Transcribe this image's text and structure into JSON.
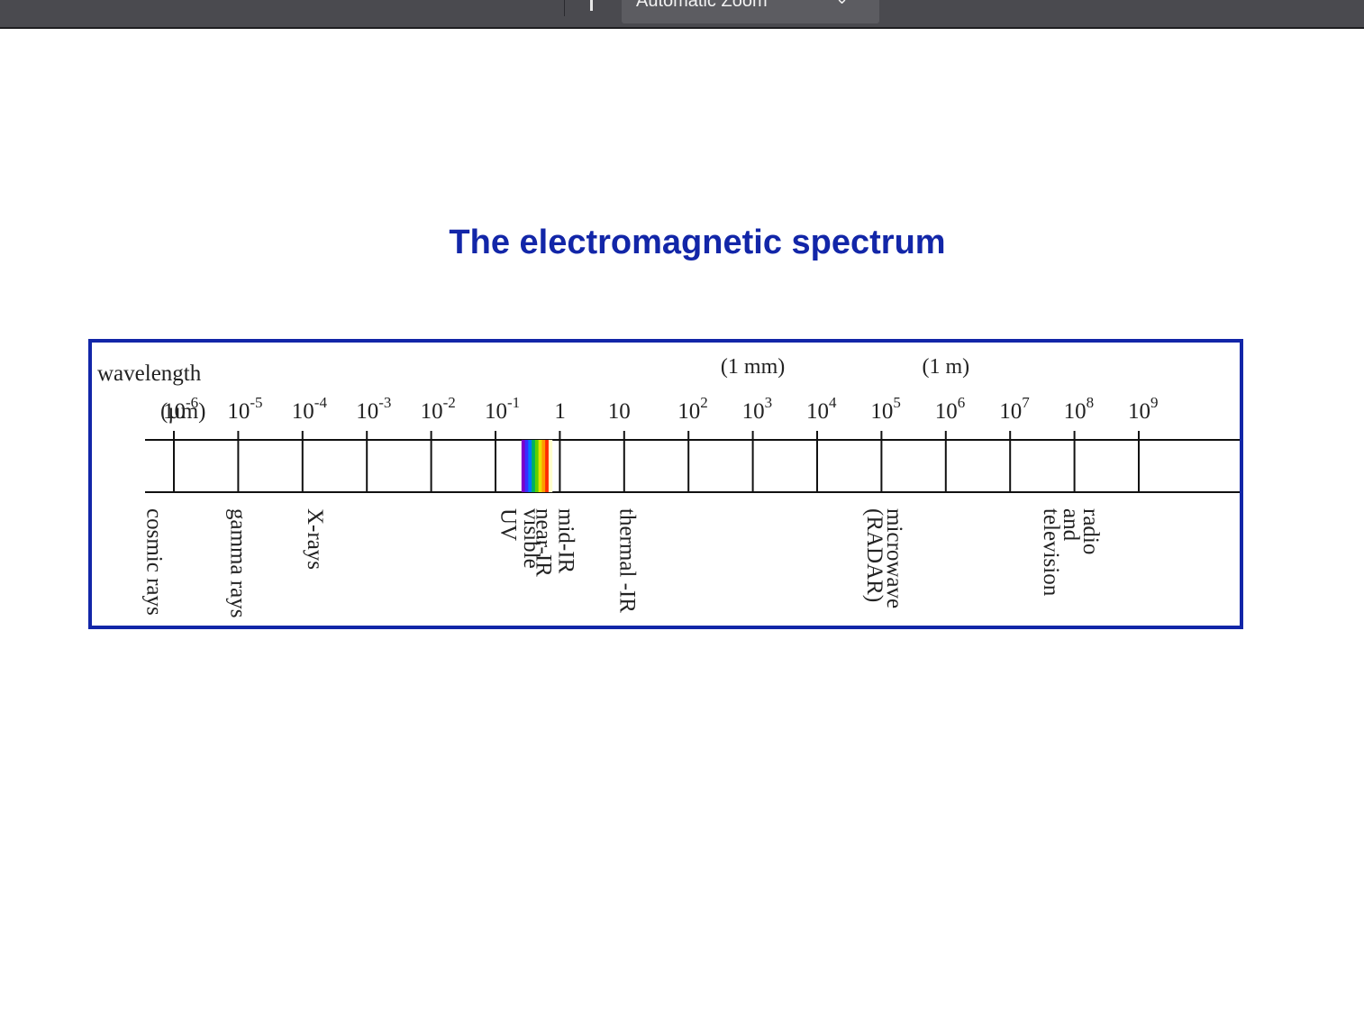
{
  "toolbar": {
    "zoom_label": "Automatic Zoom",
    "zoom_icon": "chevron-down-icon"
  },
  "page": {
    "title": "The electromagnetic spectrum"
  },
  "figure": {
    "axis_label_line1": "wavelength",
    "axis_unit": "(µm)",
    "ticks": [
      {
        "base": "10",
        "exp": "-6"
      },
      {
        "base": "10",
        "exp": "-5"
      },
      {
        "base": "10",
        "exp": "-4"
      },
      {
        "base": "10",
        "exp": "-3"
      },
      {
        "base": "10",
        "exp": "-2"
      },
      {
        "base": "10",
        "exp": "-1"
      },
      {
        "base": "1",
        "exp": ""
      },
      {
        "base": "10",
        "exp": ""
      },
      {
        "base": "10",
        "exp": "2"
      },
      {
        "base": "10",
        "exp": "3"
      },
      {
        "base": "10",
        "exp": "4"
      },
      {
        "base": "10",
        "exp": "5"
      },
      {
        "base": "10",
        "exp": "6"
      },
      {
        "base": "10",
        "exp": "7"
      },
      {
        "base": "10",
        "exp": "8"
      },
      {
        "base": "10",
        "exp": "9"
      }
    ],
    "upper_annotations": [
      {
        "text": "(1 mm)",
        "at_exp": 3
      },
      {
        "text": "(1 m)",
        "at_exp": 6
      }
    ],
    "visible_band": {
      "from_exp": -0.4,
      "to_exp": -0.15,
      "label": "visible",
      "colors": [
        "#7b00c8",
        "#3a2bff",
        "#0077ff",
        "#00b060",
        "#5cd000",
        "#e8e000",
        "#ff9a00",
        "#ff2a00",
        "#ffffcc"
      ]
    },
    "regions": [
      {
        "lines": [
          "cosmic rays"
        ],
        "at_exp": -6.3
      },
      {
        "lines": [
          "gamma rays"
        ],
        "at_exp": -5.0
      },
      {
        "lines": [
          "X-rays"
        ],
        "at_exp": -3.8
      },
      {
        "lines": [
          "UV"
        ],
        "at_exp": -0.8
      },
      {
        "lines": [
          "visible"
        ],
        "at_exp": -0.44
      },
      {
        "lines": [
          "near-IR"
        ],
        "at_exp": -0.25
      },
      {
        "lines": [
          "mid-IR"
        ],
        "at_exp": 0.1
      },
      {
        "lines": [
          "thermal -IR"
        ],
        "at_exp": 1.05
      },
      {
        "lines": [
          "microwave",
          "(RADAR)"
        ],
        "at_exp": 5.05
      },
      {
        "lines": [
          "radio",
          "and",
          "television"
        ],
        "at_exp": 7.95
      }
    ]
  }
}
